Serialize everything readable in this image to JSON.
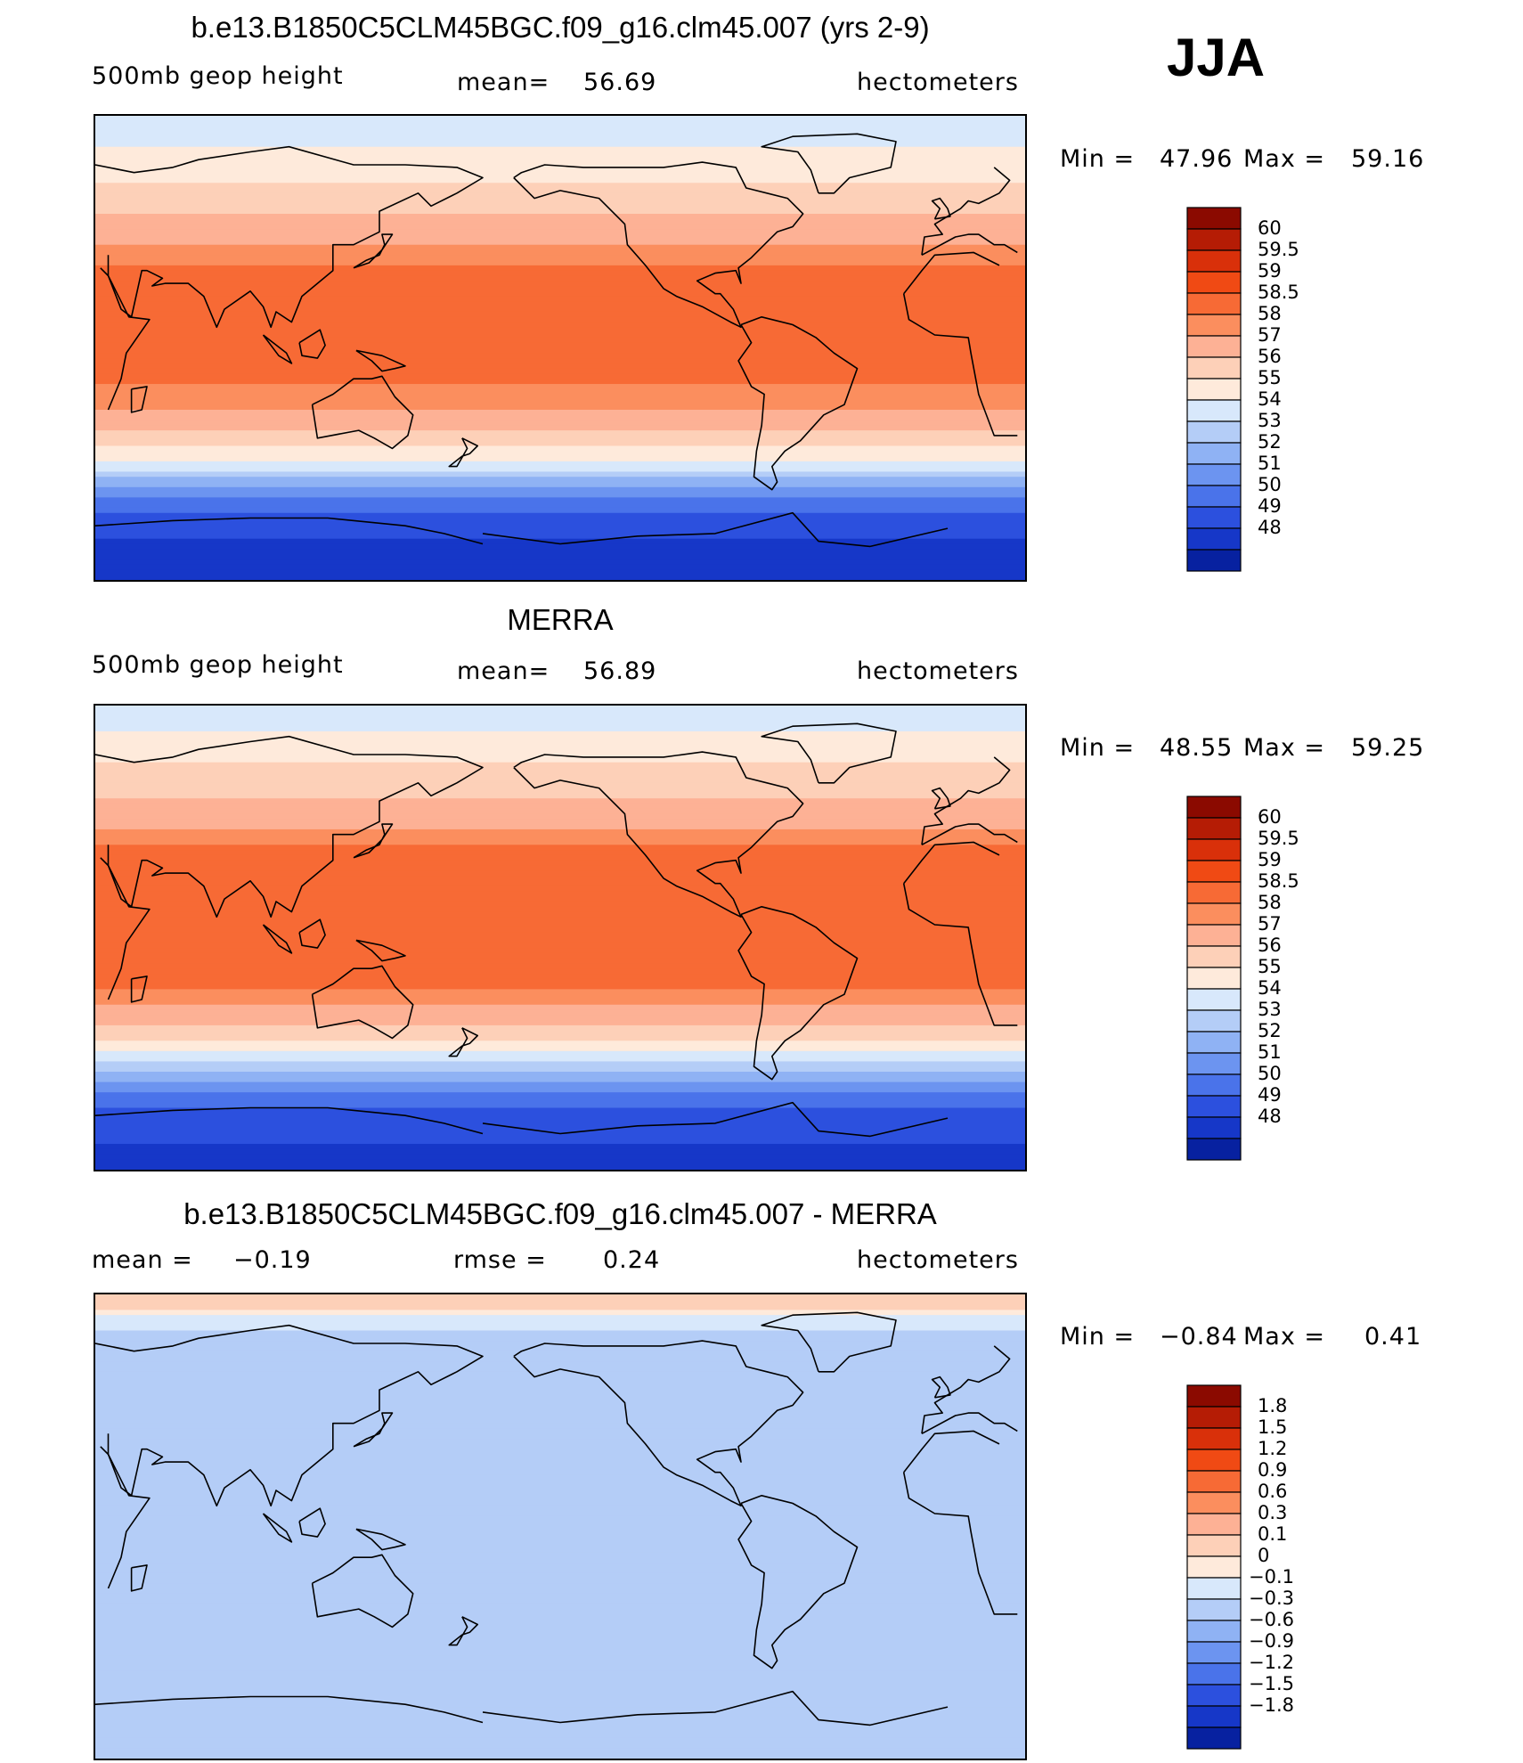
{
  "season": "JJA",
  "chart_data": [
    {
      "type": "heatmap",
      "title": "b.e13.B1850C5CLM45BGC.f09_g16.clm45.007 (yrs 2-9)",
      "variable": "500mb geop height",
      "mean_label": "mean=",
      "mean": "56.69",
      "units": "hectometers",
      "min_label": "Min =",
      "min": "47.96",
      "max_label": "Max =",
      "max": "59.16",
      "levels": [
        "60",
        "59.5",
        "59",
        "58.5",
        "58",
        "57",
        "56",
        "55",
        "54",
        "53",
        "52",
        "51",
        "50",
        "49",
        "48"
      ],
      "colors": [
        "#8b0a00",
        "#b51c05",
        "#d9300a",
        "#f04a14",
        "#f76a35",
        "#fb8e5e",
        "#fdb195",
        "#fdd0b8",
        "#feeadb",
        "#d8e8fb",
        "#b4cdf7",
        "#8fb2f4",
        "#6c94f0",
        "#4a73ea",
        "#2c50de",
        "#1637c8",
        "#0721a0"
      ],
      "field_by_lat": [
        [
          90,
          54.3
        ],
        [
          80,
          54.8
        ],
        [
          70,
          55.6
        ],
        [
          60,
          56.3
        ],
        [
          50,
          57.1
        ],
        [
          40,
          58.0
        ],
        [
          30,
          58.7
        ],
        [
          20,
          58.9
        ],
        [
          10,
          58.7
        ],
        [
          0,
          58.6
        ],
        [
          -10,
          58.6
        ],
        [
          -20,
          58.3
        ],
        [
          -30,
          57.5
        ],
        [
          -40,
          55.8
        ],
        [
          -45,
          54.6
        ],
        [
          -50,
          53.1
        ],
        [
          -55,
          51.8
        ],
        [
          -60,
          50.6
        ],
        [
          -65,
          49.7
        ],
        [
          -70,
          49.2
        ],
        [
          -80,
          48.7
        ],
        [
          -90,
          48.4
        ]
      ]
    },
    {
      "type": "heatmap",
      "title": "MERRA",
      "variable": "500mb geop height",
      "mean_label": "mean=",
      "mean": "56.89",
      "units": "hectometers",
      "min_label": "Min =",
      "min": "48.55",
      "max_label": "Max =",
      "max": "59.25",
      "levels": [
        "60",
        "59.5",
        "59",
        "58.5",
        "58",
        "57",
        "56",
        "55",
        "54",
        "53",
        "52",
        "51",
        "50",
        "49",
        "48"
      ],
      "colors": [
        "#8b0a00",
        "#b51c05",
        "#d9300a",
        "#f04a14",
        "#f76a35",
        "#fb8e5e",
        "#fdb195",
        "#fdd0b8",
        "#feeadb",
        "#d8e8fb",
        "#b4cdf7",
        "#8fb2f4",
        "#6c94f0",
        "#4a73ea",
        "#2c50de",
        "#1637c8",
        "#0721a0"
      ],
      "field_by_lat": [
        [
          90,
          54.5
        ],
        [
          80,
          55.0
        ],
        [
          70,
          55.8
        ],
        [
          60,
          56.5
        ],
        [
          50,
          57.3
        ],
        [
          40,
          58.2
        ],
        [
          30,
          58.9
        ],
        [
          20,
          59.0
        ],
        [
          10,
          58.8
        ],
        [
          0,
          58.7
        ],
        [
          -10,
          58.7
        ],
        [
          -20,
          58.5
        ],
        [
          -30,
          57.7
        ],
        [
          -40,
          56.0
        ],
        [
          -45,
          54.8
        ],
        [
          -50,
          53.3
        ],
        [
          -55,
          52.0
        ],
        [
          -60,
          50.9
        ],
        [
          -65,
          50.0
        ],
        [
          -70,
          49.6
        ],
        [
          -80,
          49.0
        ],
        [
          -90,
          48.8
        ]
      ]
    },
    {
      "type": "heatmap",
      "title": "b.e13.B1850C5CLM45BGC.f09_g16.clm45.007 - MERRA",
      "mean_label": "mean =",
      "mean": "−0.19",
      "rmse_label": "rmse =",
      "rmse": "0.24",
      "units": "hectometers",
      "min_label": "Min =",
      "min": "−0.84",
      "max_label": "Max =",
      "max": "0.41",
      "levels": [
        "1.8",
        "1.5",
        "1.2",
        "0.9",
        "0.6",
        "0.3",
        "0.1",
        "0",
        "−0.1",
        "−0.3",
        "−0.6",
        "−0.9",
        "−1.2",
        "−1.5",
        "−1.8"
      ],
      "colors": [
        "#8b0a00",
        "#b51c05",
        "#d9300a",
        "#f04a14",
        "#f76a35",
        "#fb8e5e",
        "#fdb195",
        "#fdd0b8",
        "#feeadb",
        "#d8e8fb",
        "#b4cdf7",
        "#8fb2f4",
        "#6c94f0",
        "#4a73ea",
        "#2c50de",
        "#1637c8",
        "#0721a0"
      ],
      "field_by_lat": [
        [
          90,
          0.15
        ],
        [
          85,
          0.12
        ],
        [
          80,
          -0.05
        ],
        [
          70,
          -0.2
        ],
        [
          60,
          -0.25
        ],
        [
          50,
          -0.2
        ],
        [
          40,
          -0.15
        ],
        [
          30,
          -0.1
        ],
        [
          20,
          -0.2
        ],
        [
          10,
          -0.2
        ],
        [
          0,
          -0.18
        ],
        [
          -10,
          -0.2
        ],
        [
          -20,
          -0.22
        ],
        [
          -30,
          -0.25
        ],
        [
          -40,
          -0.2
        ],
        [
          -50,
          -0.15
        ],
        [
          -60,
          -0.3
        ],
        [
          -70,
          -0.25
        ],
        [
          -80,
          -0.2
        ],
        [
          -90,
          -0.25
        ]
      ]
    }
  ]
}
